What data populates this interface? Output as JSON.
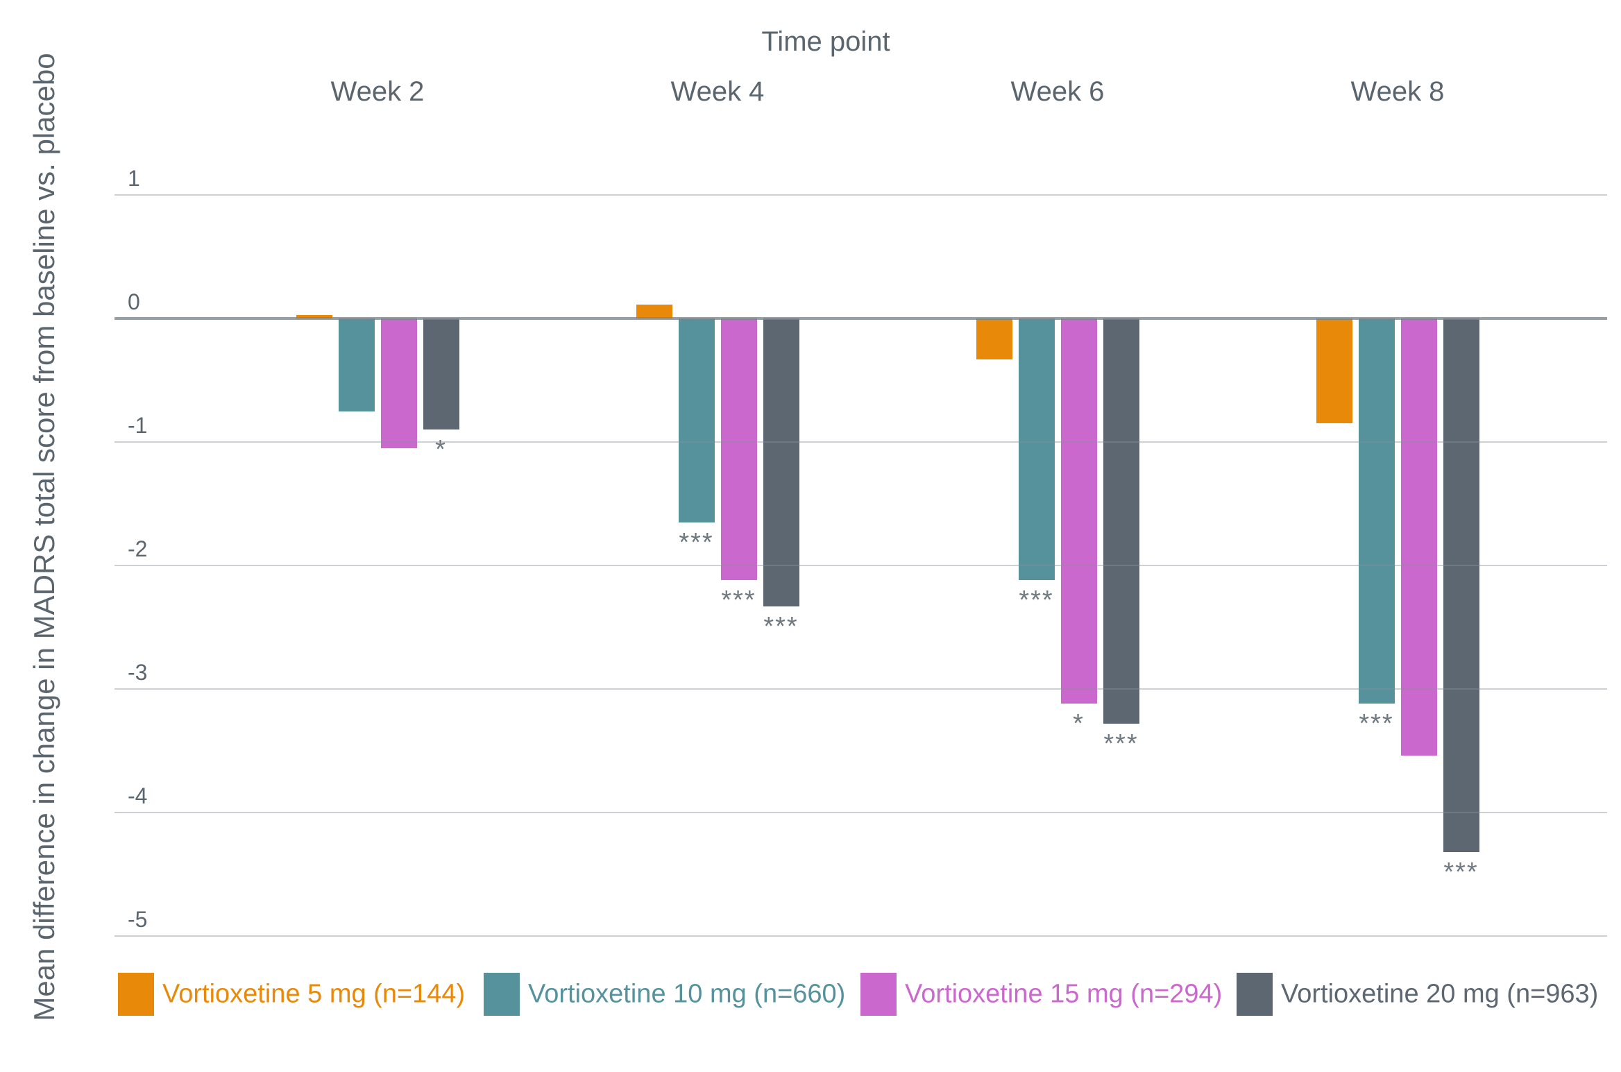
{
  "chart_data": {
    "type": "bar",
    "title": "Time point",
    "ylabel": "Mean difference in change in MADRS total score from baseline vs. placebo",
    "categories": [
      "Week 2",
      "Week 4",
      "Week 6",
      "Week 8"
    ],
    "y_ticks": [
      1,
      0,
      -1,
      -2,
      -3,
      -4,
      -5
    ],
    "ylim": [
      -5.4,
      1.0
    ],
    "grid": true,
    "legend_position": "bottom",
    "series": [
      {
        "name": "Vortioxetine 5 mg (n=144)",
        "color": "#e8890a",
        "values": [
          0.03,
          0.11,
          -0.33,
          -0.85
        ],
        "significance": [
          "",
          "",
          "",
          ""
        ]
      },
      {
        "name": "Vortioxetine 10 mg (n=660)",
        "color": "#55929b",
        "values": [
          -0.75,
          -1.65,
          -2.12,
          -3.12
        ],
        "significance": [
          "",
          "***",
          "***",
          "***"
        ]
      },
      {
        "name": "Vortioxetine 15 mg (n=294)",
        "color": "#cb68cd",
        "values": [
          -1.05,
          -2.12,
          -3.12,
          -3.54
        ],
        "significance": [
          "",
          "***",
          "*",
          ""
        ]
      },
      {
        "name": "Vortioxetine 20 mg (n=963)",
        "color": "#5d6771",
        "values": [
          -0.9,
          -2.33,
          -3.28,
          -4.32
        ],
        "significance": [
          "*",
          "***",
          "***",
          "***"
        ]
      }
    ]
  }
}
